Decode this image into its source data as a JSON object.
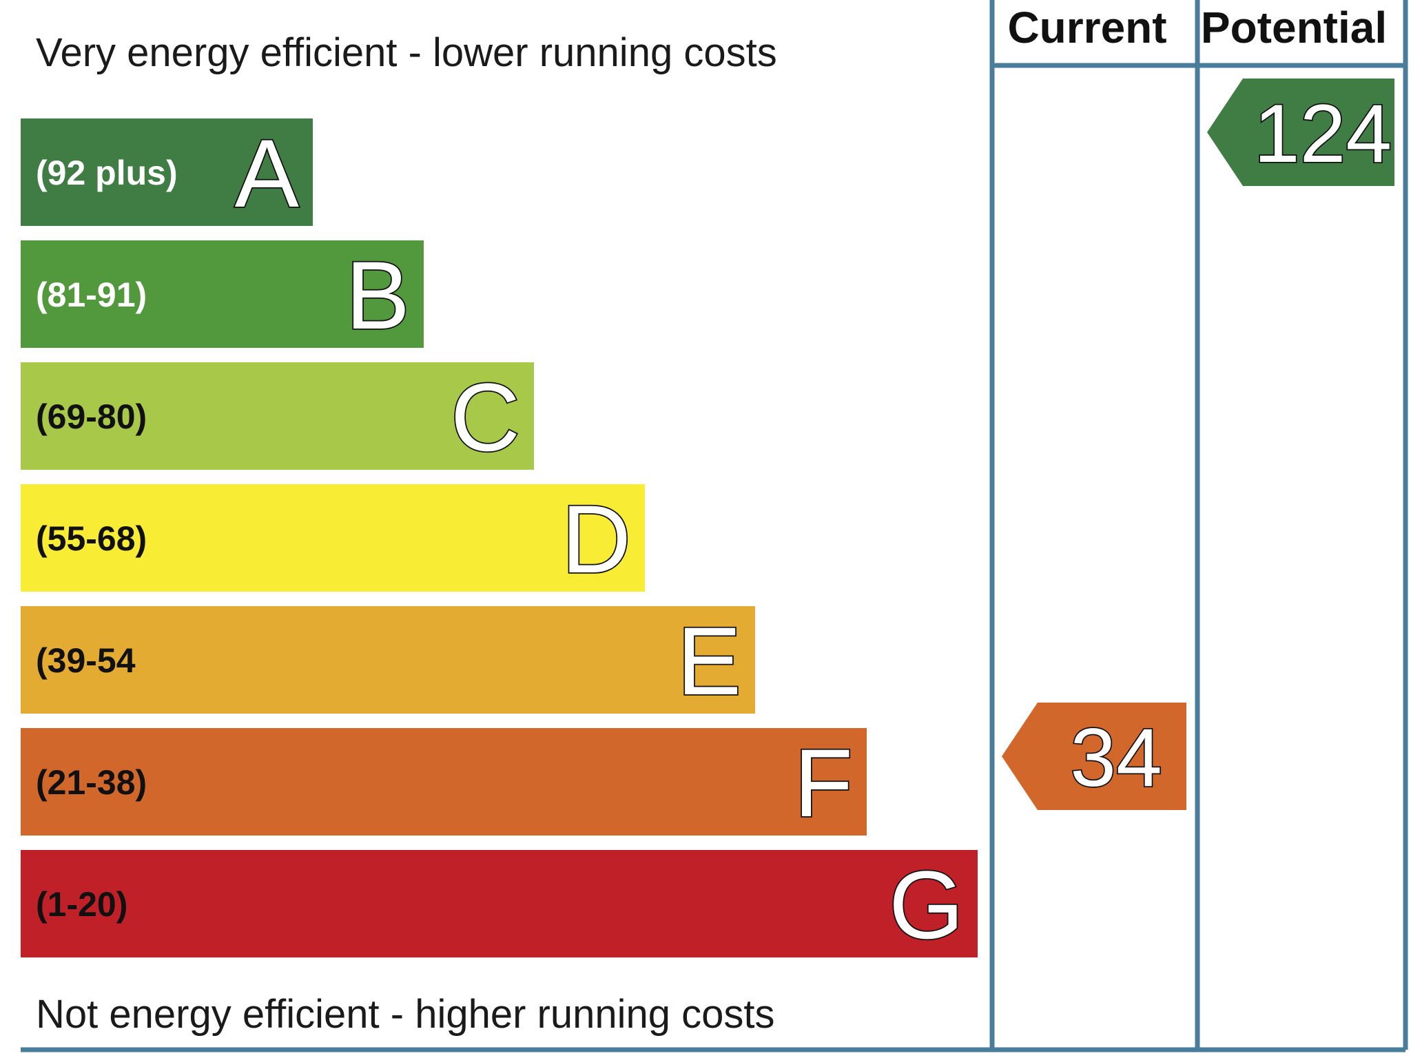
{
  "chart_data": {
    "type": "bar",
    "top_caption": "Very energy efficient - lower running costs",
    "bottom_caption": "Not energy efficient - higher running costs",
    "columns": {
      "current": "Current",
      "potential": "Potential"
    },
    "bands": [
      {
        "letter": "A",
        "range": "(92 plus)",
        "min": 92,
        "max": 130,
        "color": "#3f7d45",
        "label_color": "#ffffff"
      },
      {
        "letter": "B",
        "range": "(81-91)",
        "min": 81,
        "max": 91,
        "color": "#52983c",
        "label_color": "#ffffff"
      },
      {
        "letter": "C",
        "range": "(69-80)",
        "min": 69,
        "max": 80,
        "color": "#a8c84a",
        "label_color": "#111111"
      },
      {
        "letter": "D",
        "range": "(55-68)",
        "min": 55,
        "max": 68,
        "color": "#f8ec35",
        "label_color": "#111111"
      },
      {
        "letter": "E",
        "range": "(39-54",
        "min": 39,
        "max": 54,
        "color": "#e4ab32",
        "label_color": "#111111"
      },
      {
        "letter": "F",
        "range": "(21-38)",
        "min": 21,
        "max": 38,
        "color": "#d2672c",
        "label_color": "#111111"
      },
      {
        "letter": "G",
        "range": "(1-20)",
        "min": 1,
        "max": 20,
        "color": "#c02027",
        "label_color": "#111111"
      }
    ],
    "current": {
      "value": 34,
      "label": "34",
      "band": "F",
      "color": "#d2672c"
    },
    "potential": {
      "value": 124,
      "label": "124",
      "band": "A",
      "color": "#3f7d45"
    },
    "frame_color": "#4a7c9c"
  }
}
